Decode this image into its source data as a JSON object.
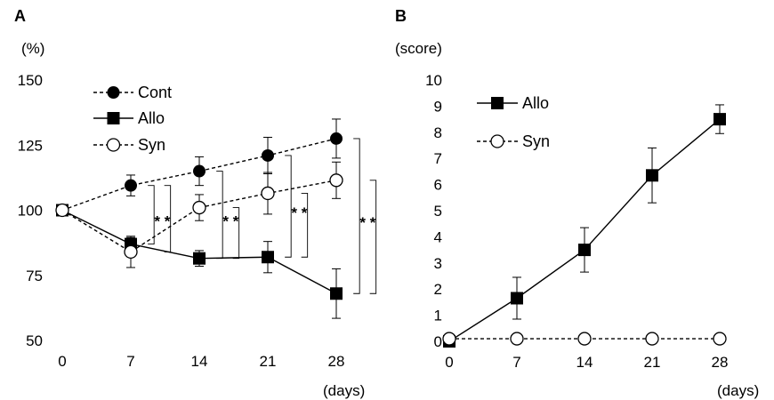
{
  "chart_data": [
    {
      "type": "line",
      "panel_label": "A",
      "y_unit": "(%)",
      "x_unit": "(days)",
      "x": [
        0,
        7,
        14,
        21,
        28
      ],
      "xticks": [
        "0",
        "7",
        "14",
        "21",
        "28"
      ],
      "yticks": [
        "50",
        "75",
        "100",
        "125",
        "150"
      ],
      "ylim": [
        50,
        150
      ],
      "grid": false,
      "legend_position": "top-left",
      "series": [
        {
          "name": "Cont",
          "marker": "filled-circle",
          "line": "dashed",
          "values": [
            100,
            109.5,
            115,
            121,
            127.5
          ],
          "errors": [
            0,
            4,
            5.5,
            7,
            7.5
          ]
        },
        {
          "name": "Allo",
          "marker": "filled-square",
          "line": "solid",
          "values": [
            100,
            87,
            81.5,
            82,
            68
          ],
          "errors": [
            0,
            2.5,
            3,
            6,
            9.5
          ]
        },
        {
          "name": "Syn",
          "marker": "open-circle",
          "line": "dashed",
          "values": [
            100,
            84,
            101,
            106.5,
            111.5
          ],
          "errors": [
            0,
            6,
            5,
            8,
            7
          ]
        }
      ],
      "annotations": [
        {
          "text": "* *",
          "x_between": [
            7,
            14
          ],
          "brackets": [
            [
              109.5,
              87
            ],
            [
              109.5,
              84
            ]
          ]
        },
        {
          "text": "* *",
          "x_between": [
            14,
            21
          ],
          "brackets": [
            [
              115,
              81.5
            ],
            [
              101,
              81.5
            ]
          ]
        },
        {
          "text": "* *",
          "x_between": [
            21,
            28
          ],
          "brackets": [
            [
              121,
              82
            ],
            [
              106.5,
              82
            ]
          ]
        },
        {
          "text": "* *",
          "x_between": [
            28,
            35
          ],
          "brackets": [
            [
              127.5,
              68
            ],
            [
              111.5,
              68
            ]
          ]
        }
      ]
    },
    {
      "type": "line",
      "panel_label": "B",
      "y_unit": "(score)",
      "x_unit": "(days)",
      "x": [
        0,
        7,
        14,
        21,
        28
      ],
      "xticks": [
        "0",
        "7",
        "14",
        "21",
        "28"
      ],
      "yticks": [
        "0",
        "1",
        "2",
        "3",
        "4",
        "5",
        "6",
        "7",
        "8",
        "9",
        "10"
      ],
      "ylim": [
        0,
        10
      ],
      "grid": false,
      "legend_position": "top-left",
      "series": [
        {
          "name": "Allo",
          "marker": "filled-square",
          "line": "solid",
          "values": [
            0,
            1.65,
            3.5,
            6.35,
            8.5
          ],
          "errors": [
            0,
            0.8,
            0.85,
            1.05,
            0.55
          ]
        },
        {
          "name": "Syn",
          "marker": "open-circle",
          "line": "dashed",
          "values": [
            0.1,
            0.1,
            0.1,
            0.1,
            0.1
          ],
          "errors": [
            0,
            0,
            0,
            0,
            0
          ]
        }
      ]
    }
  ]
}
